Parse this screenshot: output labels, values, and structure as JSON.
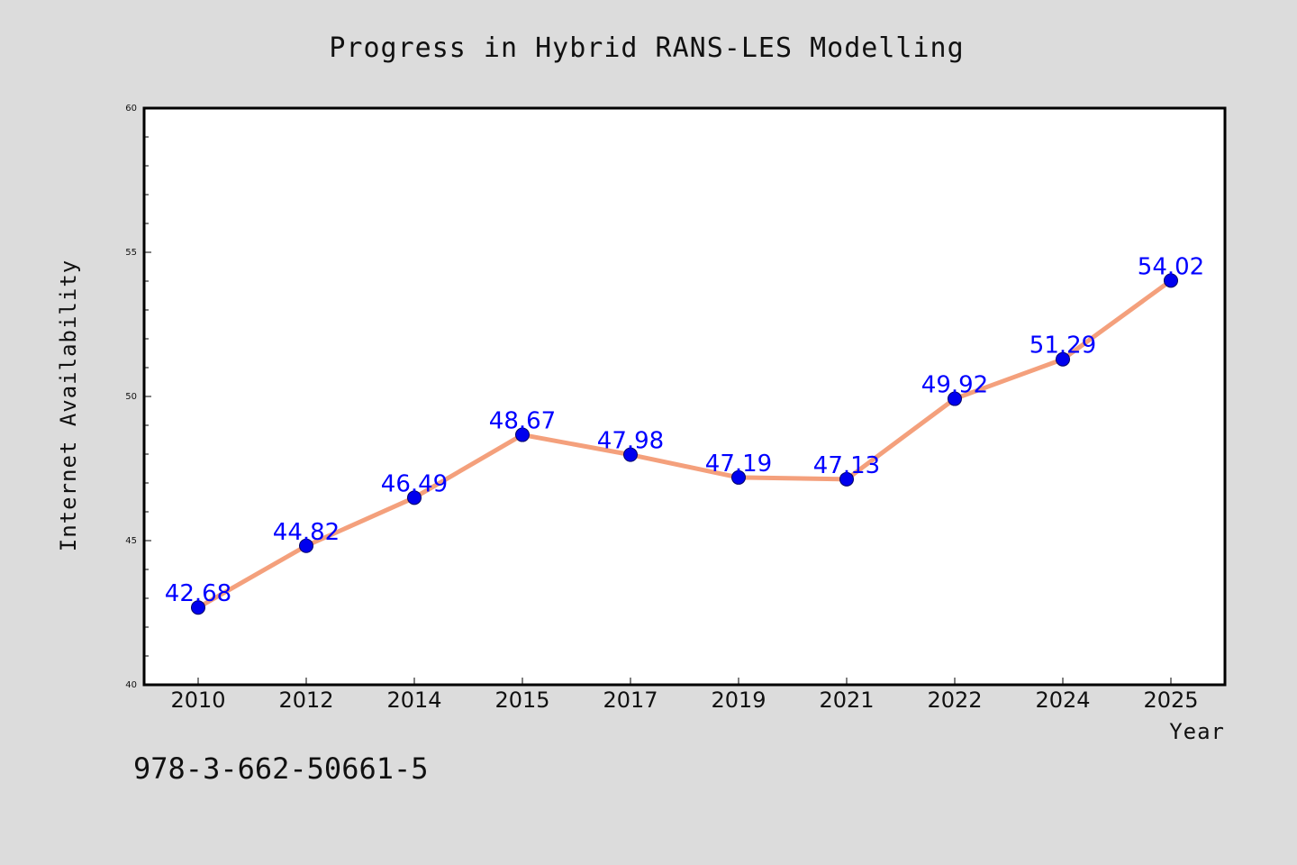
{
  "chart_data": {
    "type": "line",
    "title": "Progress in Hybrid RANS-LES Modelling",
    "xlabel": "Year",
    "ylabel": "Internet Availability",
    "categories": [
      "2010",
      "2012",
      "2014",
      "2015",
      "2017",
      "2019",
      "2021",
      "2022",
      "2024",
      "2025"
    ],
    "series": [
      {
        "values": [
          42.68,
          44.82,
          46.49,
          48.67,
          47.98,
          47.19,
          47.13,
          49.92,
          51.29,
          54.02
        ],
        "value_labels": [
          "42.68",
          "44.82",
          "46.49",
          "48.67",
          "47.98",
          "47.19",
          "47.13",
          "49.92",
          "51.29",
          "54.02"
        ],
        "line_color": "#f4a07c",
        "marker_color": "#0000ee"
      }
    ],
    "ylim": [
      40,
      60
    ],
    "yticks": [
      "40",
      "45",
      "50",
      "55",
      "60"
    ],
    "grid": false,
    "legend": "none",
    "background_color": "#dcdcdc",
    "plot_background_color": "#ffffff"
  },
  "annotations": {
    "isbn": "978-3-662-50661-5"
  }
}
